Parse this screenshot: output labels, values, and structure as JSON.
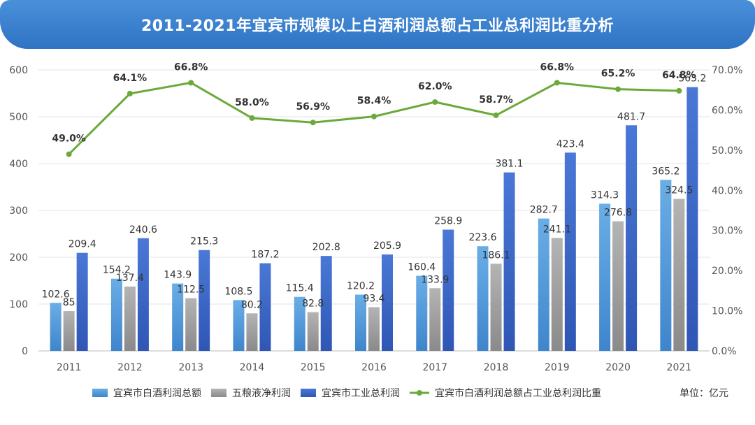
{
  "title": "2011-2021年宜宾市规模以上白酒利润总额占工业总利润比重分析",
  "unit_label": "单位：亿元",
  "colors": {
    "s1": "#4f9ad8",
    "s2": "#9a9a9a",
    "s3": "#3a66c8",
    "line": "#6aaa3a"
  },
  "chart_data": {
    "type": "bar",
    "categories": [
      "2011",
      "2012",
      "2013",
      "2014",
      "2015",
      "2016",
      "2017",
      "2018",
      "2019",
      "2020",
      "2021"
    ],
    "series": [
      {
        "name": "宜宾市白酒利润总额",
        "values": [
          102.6,
          154.2,
          143.9,
          108.5,
          115.4,
          120.2,
          160.4,
          223.6,
          282.7,
          314.3,
          365.2
        ],
        "labels": [
          "102.6",
          "154.2",
          "143.9",
          "108.5",
          "115.4",
          "120.2",
          "160.4",
          "223.6",
          "282.7",
          "314.3",
          "365.2"
        ]
      },
      {
        "name": "五粮液净利润",
        "values": [
          85,
          137.4,
          112.5,
          80.2,
          82.8,
          93.4,
          133.9,
          186.1,
          241.1,
          276.8,
          324.5
        ],
        "labels": [
          "85",
          "137.4",
          "112.5",
          "80.2",
          "82.8",
          "93.4",
          "133.9",
          "186.1",
          "241.1",
          "276.8",
          "324.5"
        ]
      },
      {
        "name": "宜宾市工业总利润",
        "values": [
          209.4,
          240.6,
          215.3,
          187.2,
          202.8,
          205.9,
          258.9,
          381.1,
          423.4,
          481.7,
          563.2
        ],
        "labels": [
          "209.4",
          "240.6",
          "215.3",
          "187.2",
          "202.8",
          "205.9",
          "258.9",
          "381.1",
          "423.4",
          "481.7",
          "563.2"
        ]
      }
    ],
    "line_series": {
      "name": "宜宾市白酒利润总额占工业总利润比重",
      "values": [
        49.0,
        64.1,
        66.8,
        58.0,
        56.9,
        58.4,
        62.0,
        58.7,
        66.8,
        65.2,
        64.8
      ],
      "labels": [
        "49.0%",
        "64.1%",
        "66.8%",
        "58.0%",
        "56.9%",
        "58.4%",
        "62.0%",
        "58.7%",
        "66.8%",
        "65.2%",
        "64.8%"
      ]
    },
    "y_left": {
      "min": 0,
      "max": 600,
      "ticks": [
        "0",
        "100",
        "200",
        "300",
        "400",
        "500",
        "600"
      ]
    },
    "y_right": {
      "min": 0,
      "max": 70,
      "ticks": [
        "0.0%",
        "10.0%",
        "20.0%",
        "30.0%",
        "40.0%",
        "50.0%",
        "60.0%",
        "70.0%"
      ]
    },
    "grid": true,
    "legend_position": "bottom"
  }
}
